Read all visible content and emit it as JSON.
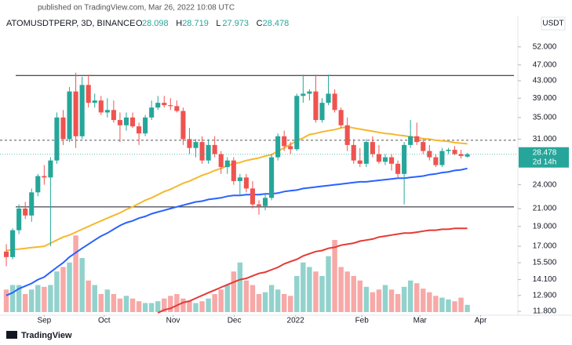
{
  "chart_data": {
    "type": "candlestick",
    "header": "published on TradingView.com, Mar 26, 2022 10:08 UTC",
    "symbol": "ATOMUSDTPERP, 3D, BINANCE",
    "legend_values": [
      {
        "prefix": "O",
        "label": "28.098"
      },
      {
        "prefix": "H",
        "label": "28.719"
      },
      {
        "prefix": "L",
        "label": "27.973"
      },
      {
        "prefix": "C",
        "label": "28.478"
      }
    ],
    "currency": "USDT",
    "footer": "TradingView",
    "log_scale": true,
    "grid": false,
    "up_color": "#26a69a",
    "down_color": "#ef5350",
    "ylim": [
      11.65,
      61.4
    ],
    "yticks": [
      {
        "value": 52,
        "label": "52.000"
      },
      {
        "value": 47,
        "label": "47.000"
      },
      {
        "value": 43,
        "label": "43.000"
      },
      {
        "value": 39,
        "label": "39.000"
      },
      {
        "value": 35,
        "label": "35.000"
      },
      {
        "value": 31,
        "label": "31.000"
      },
      {
        "value": 24,
        "label": "24.000"
      },
      {
        "value": 21,
        "label": "21.000"
      },
      {
        "value": 19,
        "label": "19.000"
      },
      {
        "value": 17,
        "label": "17.000"
      },
      {
        "value": 15.5,
        "label": "15.500"
      },
      {
        "value": 14.1,
        "label": "14.100"
      },
      {
        "value": 12.9,
        "label": "12.900"
      },
      {
        "value": 11.8,
        "label": "11.800"
      }
    ],
    "xlim": [
      -1,
      81
    ],
    "xticks": [
      {
        "value": 6,
        "label": "Sep"
      },
      {
        "value": 15.5,
        "label": "Oct"
      },
      {
        "value": 26.4,
        "label": "Nov"
      },
      {
        "value": 36.1,
        "label": "Dec"
      },
      {
        "value": 45.8,
        "label": "2022"
      },
      {
        "value": 56.3,
        "label": "Feb"
      },
      {
        "value": 65.5,
        "label": "Mar"
      },
      {
        "value": 75.1,
        "label": "Apr"
      }
    ],
    "last_price": {
      "value": 28.478,
      "label": "28.478",
      "countdown": "2d 14h",
      "color": "#26a69a"
    },
    "hlines": [
      {
        "value": 44.3,
        "dashed": false,
        "color": "#131722"
      },
      {
        "value": 21.2,
        "dashed": false,
        "color": "#131722"
      },
      {
        "value": 30.8,
        "dashed": true,
        "color": "#555555"
      }
    ],
    "candles": [
      [
        16.5,
        17.2,
        15.2,
        16.0
      ],
      [
        16.0,
        18.8,
        15.8,
        18.6
      ],
      [
        18.6,
        21.5,
        18.2,
        21.0
      ],
      [
        21.0,
        21.8,
        19.8,
        20.2
      ],
      [
        20.2,
        23.5,
        19.5,
        23.0
      ],
      [
        23.0,
        25.5,
        22.5,
        25.2
      ],
      [
        25.2,
        26.8,
        24.0,
        25.0
      ],
      [
        25.0,
        28.0,
        17.0,
        27.5
      ],
      [
        27.5,
        36.0,
        27.0,
        35.0
      ],
      [
        35.0,
        36.5,
        30.0,
        31.0
      ],
      [
        31.0,
        41.5,
        30.5,
        40.5
      ],
      [
        40.5,
        45.0,
        29.5,
        31.5
      ],
      [
        31.5,
        44.0,
        31.0,
        42.0
      ],
      [
        42.0,
        44.5,
        37.0,
        38.0
      ],
      [
        38.0,
        40.0,
        37.0,
        38.5
      ],
      [
        38.5,
        39.5,
        35.5,
        36.0
      ],
      [
        36.0,
        39.0,
        35.0,
        36.5
      ],
      [
        36.5,
        38.5,
        34.0,
        34.5
      ],
      [
        34.5,
        36.0,
        30.5,
        33.5
      ],
      [
        33.5,
        36.0,
        32.5,
        35.0
      ],
      [
        35.0,
        36.0,
        33.0,
        33.3
      ],
      [
        33.3,
        34.0,
        30.0,
        32.0
      ],
      [
        32.0,
        35.5,
        31.5,
        35.0
      ],
      [
        35.0,
        38.5,
        34.5,
        37.0
      ],
      [
        37.0,
        39.5,
        36.5,
        38.0
      ],
      [
        38.0,
        39.5,
        37.0,
        37.5
      ],
      [
        37.5,
        39.0,
        36.5,
        37.3
      ],
      [
        37.3,
        38.5,
        36.0,
        36.3
      ],
      [
        36.3,
        37.0,
        30.0,
        31.0
      ],
      [
        31.0,
        33.0,
        28.5,
        29.5
      ],
      [
        29.5,
        31.0,
        28.0,
        30.5
      ],
      [
        30.5,
        31.5,
        27.0,
        27.5
      ],
      [
        27.5,
        31.0,
        27.0,
        30.0
      ],
      [
        30.0,
        31.5,
        28.0,
        28.5
      ],
      [
        28.5,
        29.0,
        25.5,
        26.5
      ],
      [
        26.5,
        28.0,
        25.5,
        27.5
      ],
      [
        27.5,
        28.0,
        24.0,
        24.5
      ],
      [
        24.5,
        25.5,
        22.5,
        25.0
      ],
      [
        25.0,
        25.5,
        23.0,
        23.5
      ],
      [
        23.5,
        24.5,
        21.0,
        21.5
      ],
      [
        21.5,
        22.0,
        20.3,
        21.3
      ],
      [
        21.3,
        22.8,
        20.8,
        22.3
      ],
      [
        22.3,
        28.5,
        22.0,
        28.0
      ],
      [
        28.0,
        32.0,
        27.5,
        31.5
      ],
      [
        31.5,
        32.5,
        29.0,
        29.8
      ],
      [
        29.8,
        30.5,
        28.5,
        29.3
      ],
      [
        29.3,
        40.0,
        29.0,
        39.5
      ],
      [
        39.5,
        44.5,
        38.0,
        40.0
      ],
      [
        40.0,
        41.0,
        38.5,
        40.5
      ],
      [
        40.5,
        44.5,
        34.0,
        34.5
      ],
      [
        34.5,
        39.0,
        34.0,
        38.0
      ],
      [
        38.0,
        44.5,
        37.5,
        40.0
      ],
      [
        40.0,
        41.0,
        36.0,
        36.5
      ],
      [
        36.5,
        37.0,
        33.0,
        33.5
      ],
      [
        33.5,
        35.0,
        29.0,
        30.0
      ],
      [
        30.0,
        31.0,
        27.0,
        27.5
      ],
      [
        27.5,
        29.5,
        26.5,
        27.0
      ],
      [
        27.0,
        31.0,
        26.5,
        30.5
      ],
      [
        30.5,
        31.5,
        28.0,
        28.5
      ],
      [
        28.5,
        30.0,
        27.0,
        27.3
      ],
      [
        27.3,
        28.5,
        26.8,
        28.0
      ],
      [
        28.0,
        28.5,
        26.0,
        27.0
      ],
      [
        27.0,
        27.5,
        25.0,
        25.5
      ],
      [
        25.5,
        30.5,
        21.5,
        30.0
      ],
      [
        30.0,
        34.5,
        29.5,
        31.5
      ],
      [
        31.5,
        34.0,
        30.0,
        30.5
      ],
      [
        30.5,
        31.0,
        28.5,
        29.0
      ],
      [
        29.0,
        30.0,
        27.5,
        28.0
      ],
      [
        28.0,
        28.5,
        26.5,
        26.8
      ],
      [
        26.8,
        29.5,
        26.5,
        29.0
      ],
      [
        29.0,
        29.5,
        28.5,
        29.2
      ],
      [
        29.2,
        29.8,
        28.3,
        28.5
      ],
      [
        28.5,
        29.2,
        27.8,
        28.2
      ],
      [
        28.098,
        28.719,
        27.973,
        28.478
      ]
    ],
    "volume": [
      25,
      30,
      30,
      20,
      25,
      30,
      28,
      30,
      45,
      50,
      55,
      85,
      60,
      35,
      30,
      20,
      25,
      20,
      15,
      18,
      15,
      12,
      10,
      10,
      12,
      15,
      18,
      20,
      15,
      12,
      10,
      12,
      15,
      20,
      25,
      30,
      45,
      55,
      35,
      30,
      20,
      22,
      30,
      25,
      20,
      18,
      40,
      55,
      50,
      45,
      40,
      62,
      80,
      50,
      45,
      40,
      35,
      28,
      22,
      25,
      30,
      25,
      20,
      28,
      35,
      32,
      26,
      22,
      18,
      16,
      14,
      12,
      16,
      8
    ],
    "series": [
      {
        "color": "#f5b82e",
        "values": [
          16.6,
          16.67,
          16.73,
          16.8,
          16.87,
          16.93,
          17.0,
          17.3,
          17.6,
          17.9,
          18.1,
          18.4,
          18.7,
          19.0,
          19.3,
          19.6,
          19.9,
          20.2,
          20.5,
          20.9,
          21.2,
          21.6,
          22.0,
          22.3,
          22.7,
          23.1,
          23.4,
          23.8,
          24.2,
          24.5,
          24.9,
          25.3,
          25.6,
          26.0,
          26.3,
          26.7,
          27.0,
          27.2,
          27.5,
          27.7,
          27.9,
          28.2,
          28.4,
          29.0,
          29.5,
          30.1,
          30.7,
          31.2,
          31.8,
          32.0,
          32.3,
          32.5,
          32.7,
          33.0,
          33.2,
          33.0,
          32.8,
          32.6,
          32.4,
          32.2,
          32.0,
          31.9,
          31.7,
          31.6,
          31.4,
          31.3,
          31.1,
          31.0,
          30.8,
          30.7,
          30.6,
          30.4,
          30.3,
          30.2
        ]
      },
      {
        "color": "#2962ff",
        "values": [
          12.9,
          13.1,
          13.4,
          13.6,
          13.8,
          14.1,
          14.3,
          14.7,
          15.1,
          15.5,
          16.0,
          16.4,
          16.8,
          17.2,
          17.6,
          18.0,
          18.3,
          18.7,
          19.1,
          19.4,
          19.6,
          19.9,
          20.1,
          20.4,
          20.6,
          20.8,
          21.0,
          21.2,
          21.4,
          21.6,
          21.8,
          21.9,
          22.1,
          22.2,
          22.3,
          22.5,
          22.6,
          22.6,
          22.7,
          22.7,
          22.7,
          22.8,
          22.8,
          22.9,
          23.1,
          23.2,
          23.3,
          23.5,
          23.6,
          23.7,
          23.8,
          23.9,
          24.0,
          24.1,
          24.2,
          24.3,
          24.4,
          24.4,
          24.5,
          24.6,
          24.7,
          24.8,
          24.9,
          24.9,
          25.0,
          25.1,
          25.2,
          25.4,
          25.5,
          25.7,
          25.8,
          26.0,
          26.1,
          26.3
        ]
      },
      {
        "color": "#e53935",
        "values": [
          null,
          null,
          null,
          null,
          null,
          null,
          null,
          null,
          null,
          null,
          null,
          null,
          null,
          null,
          null,
          null,
          null,
          null,
          null,
          null,
          null,
          null,
          null,
          null,
          11.7,
          11.9,
          12.0,
          12.2,
          12.4,
          12.5,
          12.7,
          12.9,
          13.1,
          13.3,
          13.5,
          13.7,
          13.9,
          14.1,
          14.2,
          14.4,
          14.6,
          14.7,
          14.9,
          15.1,
          15.4,
          15.6,
          15.8,
          16.1,
          16.3,
          16.5,
          16.6,
          16.8,
          16.9,
          17.1,
          17.2,
          17.3,
          17.5,
          17.6,
          17.7,
          17.9,
          18.0,
          18.1,
          18.2,
          18.3,
          18.3,
          18.4,
          18.5,
          18.6,
          18.6,
          18.7,
          18.7,
          18.8,
          18.8,
          18.8
        ]
      }
    ]
  }
}
